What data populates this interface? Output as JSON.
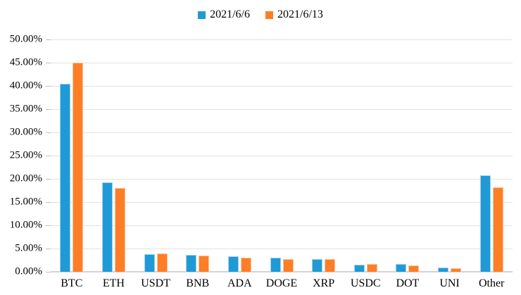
{
  "chart_data": {
    "type": "bar",
    "title": "",
    "xlabel": "",
    "ylabel": "",
    "categories": [
      "BTC",
      "ETH",
      "USDT",
      "BNB",
      "ADA",
      "DOGE",
      "XRP",
      "USDC",
      "DOT",
      "UNI",
      "Other"
    ],
    "series": [
      {
        "name": "2021/6/6",
        "color": "#1f9ad7",
        "border_color": "#9fd0ec",
        "values": [
          40.5,
          19.2,
          3.8,
          3.7,
          3.3,
          3.0,
          2.8,
          1.5,
          1.6,
          0.9,
          20.8
        ]
      },
      {
        "name": "2021/6/13",
        "color": "#fd7e26",
        "border_color": "#fdc49a",
        "values": [
          45.0,
          18.1,
          3.9,
          3.5,
          3.1,
          2.7,
          2.7,
          1.6,
          1.4,
          0.8,
          18.2
        ]
      }
    ],
    "y_axis": {
      "min": 0,
      "max": 50,
      "step": 5,
      "tick_labels": [
        "0.00%",
        "5.00%",
        "10.00%",
        "15.00%",
        "20.00%",
        "25.00%",
        "30.00%",
        "35.00%",
        "40.00%",
        "45.00%",
        "50.00%"
      ]
    },
    "grid": true,
    "legend_position": "top-center",
    "colors": {
      "gridline": "#e2e2e2",
      "baseline": "#d4d4d4",
      "text": "#000000",
      "background": "#ffffff"
    }
  }
}
